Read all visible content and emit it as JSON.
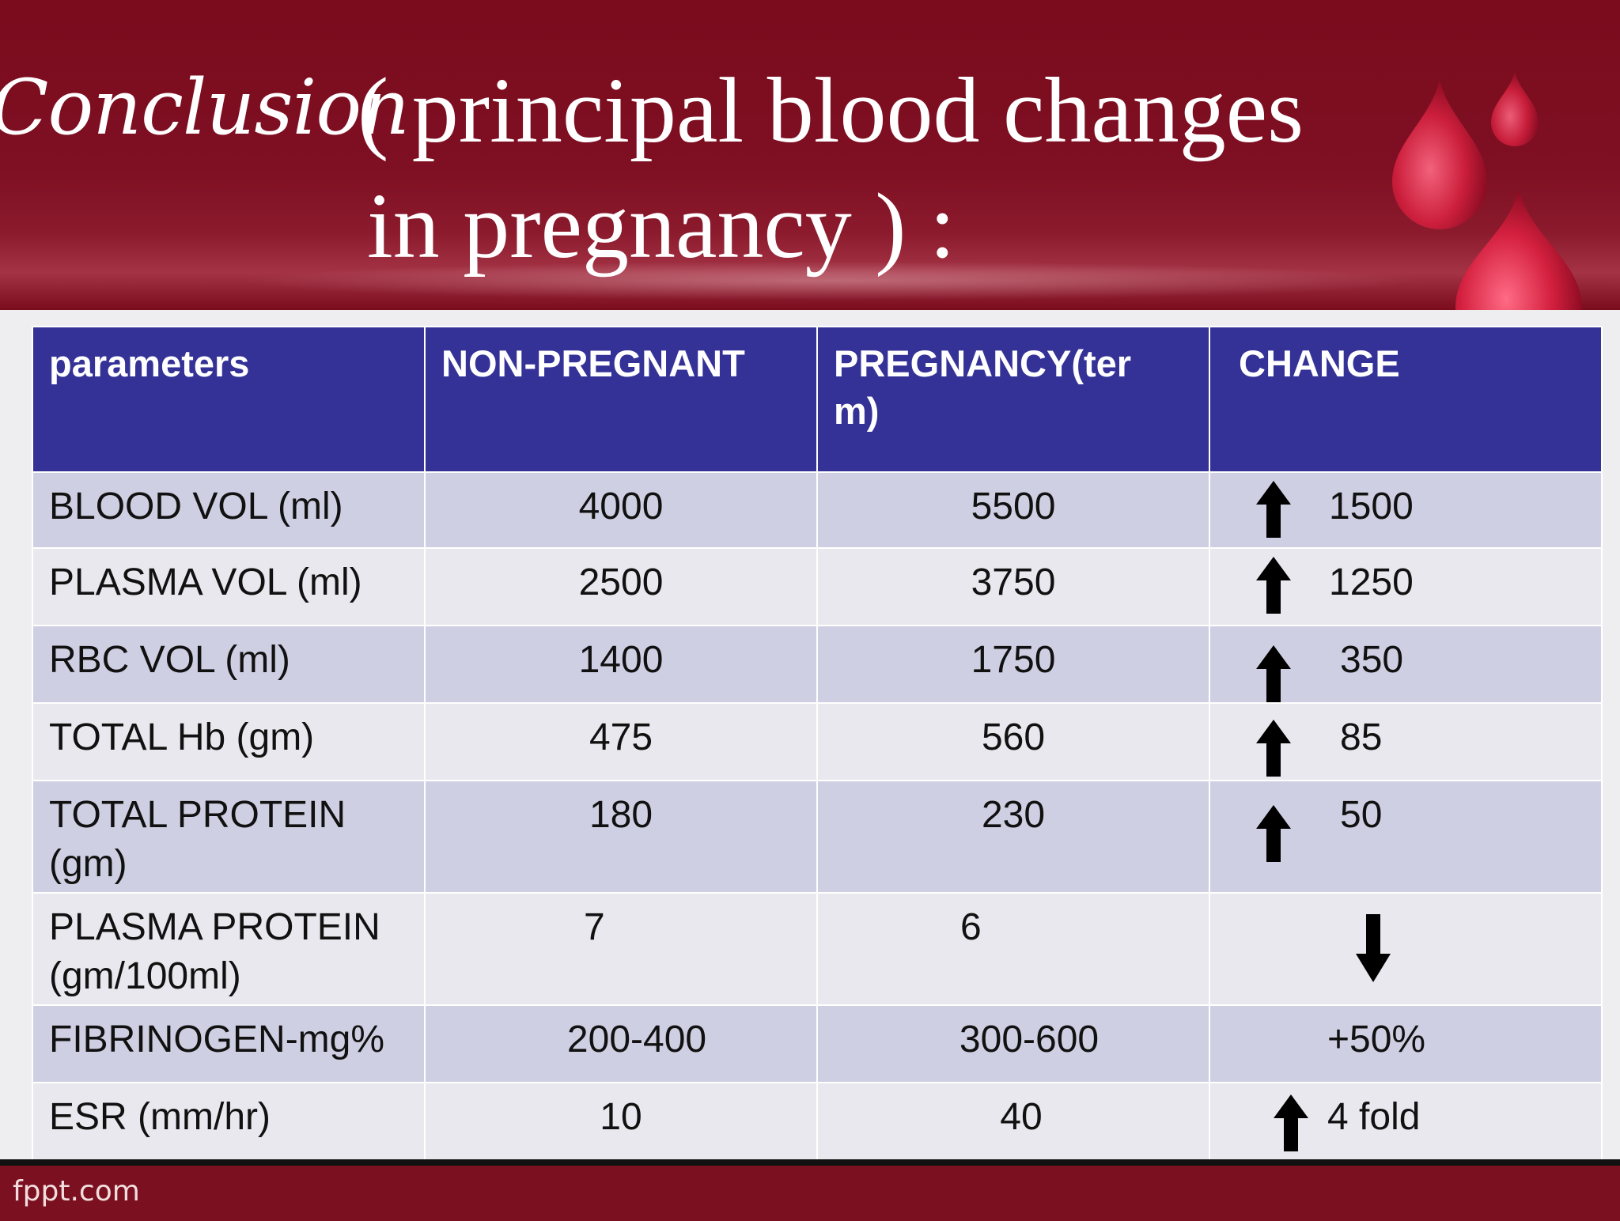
{
  "title": {
    "word": "Conclusion",
    "line1": "( principal blood changes",
    "line2": "in pregnancy ) :"
  },
  "table": {
    "headers": [
      "parameters",
      "NON-PREGNANT",
      "PREGNANCY(ter m)",
      "CHANGE"
    ],
    "rows": [
      {
        "param": "BLOOD VOL (ml)",
        "nonpregnant": "4000",
        "pregnancy": "5500",
        "change": "1500",
        "arrow": "up-arrow-icon"
      },
      {
        "param": "PLASMA VOL (ml)",
        "nonpregnant": "2500",
        "pregnancy": "3750",
        "change": "1250",
        "arrow": "up-arrow-icon"
      },
      {
        "param": "RBC VOL (ml)",
        "nonpregnant": "1400",
        "pregnancy": "1750",
        "change": "350",
        "arrow": "up-arrow-icon"
      },
      {
        "param": "TOTAL Hb (gm)",
        "nonpregnant": "475",
        "pregnancy": "560",
        "change": "85",
        "arrow": "up-arrow-icon"
      },
      {
        "param": "TOTAL PROTEIN (gm)",
        "nonpregnant": "180",
        "pregnancy": "230",
        "change": "50",
        "arrow": "up-arrow-icon"
      },
      {
        "param": "PLASMA PROTEIN (gm/100ml)",
        "nonpregnant": "7",
        "pregnancy": "6",
        "change": "",
        "arrow": "down-arrow-icon"
      },
      {
        "param": "FIBRINOGEN-mg%",
        "nonpregnant": "200-400",
        "pregnancy": "300-600",
        "change": "+50%",
        "arrow": ""
      },
      {
        "param": "ESR (mm/hr)",
        "nonpregnant": "10",
        "pregnancy": "40",
        "change": "4 fold",
        "arrow": "up-arrow-icon"
      }
    ]
  },
  "footer": {
    "text": "fppt.com"
  },
  "colors": {
    "header": "#7a0c1e",
    "table_header": "#343297",
    "row_odd": "#cfcfe3",
    "row_even": "#e8e8ee"
  }
}
